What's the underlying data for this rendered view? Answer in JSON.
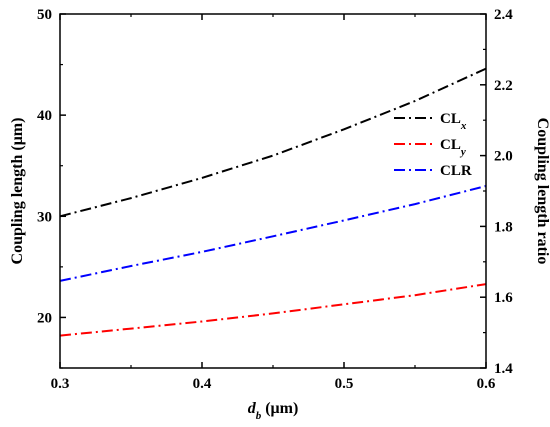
{
  "chart_data": {
    "type": "line",
    "x_axis": {
      "label_main": "d",
      "label_sub": "b",
      "label_unit": " (μm)",
      "range": [
        0.3,
        0.6
      ],
      "ticks": [
        0.3,
        0.4,
        0.5,
        0.6
      ],
      "tick_labels": [
        "0.3",
        "0.4",
        "0.5",
        "0.6"
      ]
    },
    "y_left": {
      "label": "Coupling length (μm)",
      "range": [
        15,
        50
      ],
      "ticks": [
        20,
        30,
        40,
        50
      ],
      "tick_labels": [
        "20",
        "30",
        "40",
        "50"
      ]
    },
    "y_right": {
      "label": "Coupling length ratio",
      "range": [
        1.4,
        2.4
      ],
      "ticks": [
        1.4,
        1.6,
        1.8,
        2.0,
        2.2,
        2.4
      ],
      "tick_labels": [
        "1.4",
        "1.6",
        "1.8",
        "2.0",
        "2.2",
        "2.4"
      ]
    },
    "x": [
      0.3,
      0.35,
      0.4,
      0.45,
      0.5,
      0.55,
      0.6
    ],
    "series": [
      {
        "name_main": "CL",
        "name_sub": "x",
        "axis": "left",
        "color": "#000000",
        "values": [
          30.0,
          31.8,
          33.8,
          36.0,
          38.6,
          41.4,
          44.6
        ]
      },
      {
        "name_main": "CL",
        "name_sub": "y",
        "axis": "left",
        "color": "#ff0000",
        "values": [
          18.2,
          18.9,
          19.6,
          20.4,
          21.3,
          22.2,
          23.3
        ]
      },
      {
        "name_main": "CLR",
        "name_sub": "",
        "axis": "right",
        "color": "#0000ff",
        "values": [
          1.646,
          1.688,
          1.728,
          1.772,
          1.817,
          1.863,
          1.914
        ]
      }
    ],
    "line_style": "dash-dot",
    "legend_position": "right, upper-middle",
    "grid": false
  }
}
